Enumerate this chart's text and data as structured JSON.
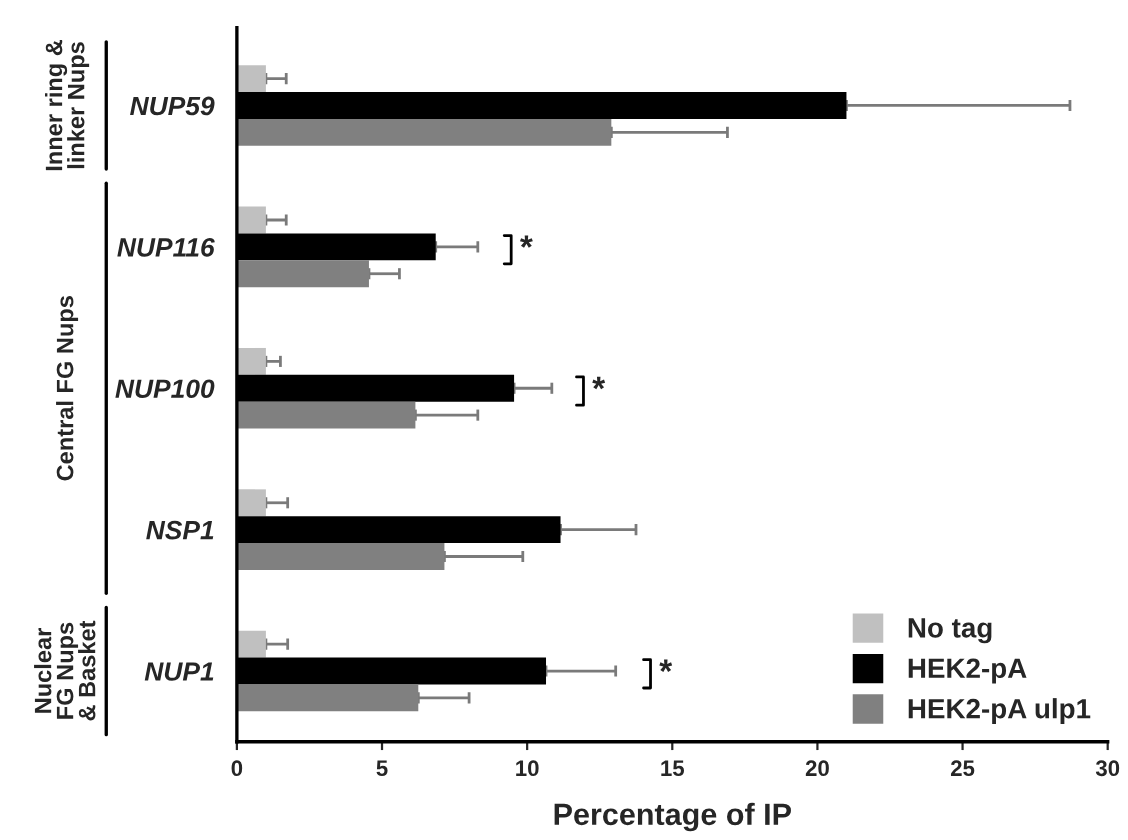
{
  "chart_data": {
    "type": "bar",
    "orientation": "horizontal",
    "xlabel": "Percentage of IP",
    "categories": [
      "NUP59",
      "NUP116",
      "NUP100",
      "NSP1",
      "NUP1"
    ],
    "series": [
      {
        "name": "No tag",
        "color": "#c0c0c0",
        "values": [
          1.0,
          1.0,
          1.0,
          1.0,
          1.0
        ],
        "errors": [
          [
            1.0,
            1.7
          ],
          [
            1.0,
            1.7
          ],
          [
            1.0,
            1.5
          ],
          [
            1.0,
            1.75
          ],
          [
            1.0,
            1.75
          ]
        ]
      },
      {
        "name": "HEK2-pA",
        "color": "#000000",
        "values": [
          21.0,
          6.85,
          9.55,
          11.15,
          10.65
        ],
        "errors": [
          [
            21.0,
            28.7
          ],
          [
            6.85,
            8.3
          ],
          [
            9.55,
            10.85
          ],
          [
            11.15,
            13.75
          ],
          [
            10.65,
            13.05
          ]
        ]
      },
      {
        "name": "HEK2-pA ulp1",
        "color": "#808080",
        "values": [
          12.9,
          4.55,
          6.15,
          7.15,
          6.25
        ],
        "errors": [
          [
            12.9,
            16.9
          ],
          [
            4.55,
            5.6
          ],
          [
            6.15,
            8.3
          ],
          [
            7.15,
            9.85
          ],
          [
            6.25,
            8.0
          ]
        ]
      }
    ],
    "xlim": [
      0,
      30
    ],
    "xticks": [
      0,
      5,
      10,
      15,
      20,
      25,
      30
    ],
    "grid": false,
    "legend": "bottom right",
    "annotations": [
      "*",
      "*",
      "*",
      "Inner ring &\nlinker Nups",
      "Central FG Nups",
      "Nuclear\nFG Nups\n& Basket"
    ]
  }
}
